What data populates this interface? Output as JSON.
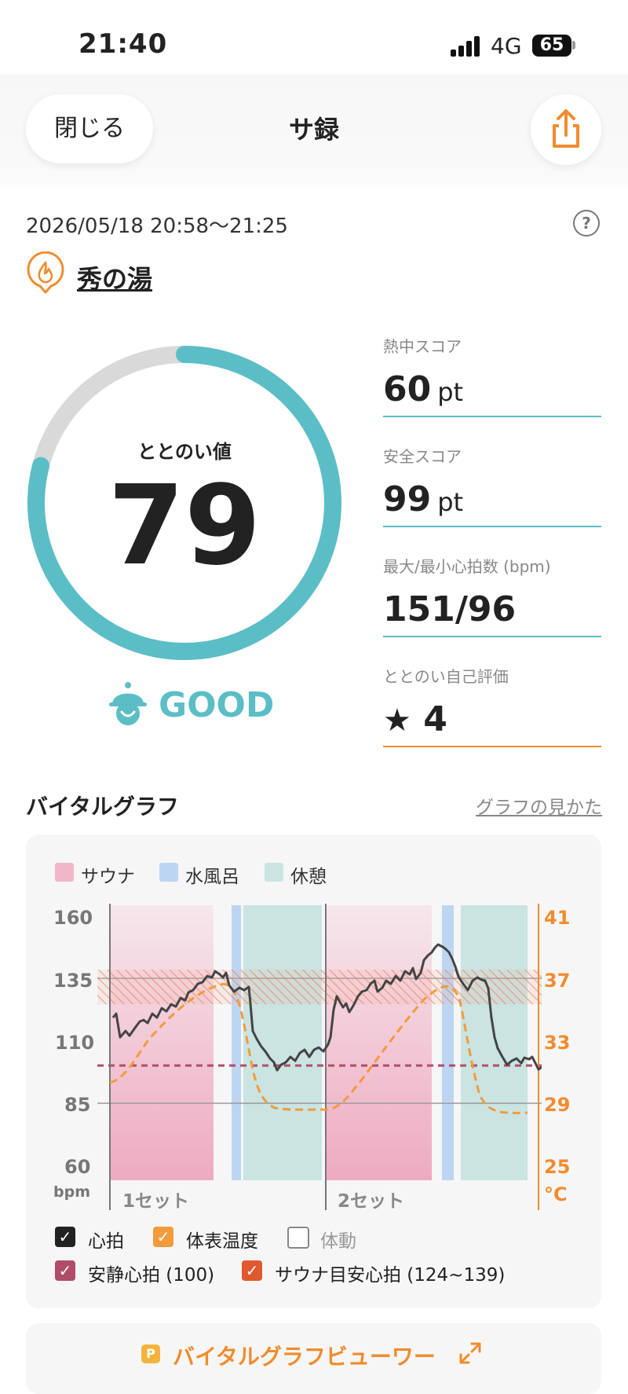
{
  "status_bar": {
    "time": "21:40",
    "network": "4G",
    "battery": "65"
  },
  "header": {
    "close_label": "閉じる",
    "title": "サ録"
  },
  "session": {
    "datetime": "2026/05/18 20:58～21:25",
    "help": "?",
    "facility": "秀の湯"
  },
  "score": {
    "label": "ととのい値",
    "value": "79",
    "fill_percent": 79,
    "rating": "GOOD"
  },
  "stats": [
    {
      "label": "熱中スコア",
      "value": "60",
      "unit": "pt"
    },
    {
      "label": "安全スコア",
      "value": "99",
      "unit": "pt"
    },
    {
      "label": "最大/最小心拍数 (bpm)",
      "value": "151/96",
      "unit": ""
    },
    {
      "label": "ととのい自己評価",
      "value": "4",
      "unit": ""
    }
  ],
  "vital": {
    "section_title": "バイタルグラフ",
    "guide_link": "グラフの見かた",
    "legend": [
      {
        "label": "サウナ",
        "color": "#f0b7c8"
      },
      {
        "label": "水風呂",
        "color": "#bcd6f2"
      },
      {
        "label": "休憩",
        "color": "#c9e4e1"
      }
    ],
    "left_axis": [
      "160",
      "135",
      "110",
      "85",
      "60"
    ],
    "left_unit": "bpm",
    "right_axis": [
      "41",
      "37",
      "33",
      "29",
      "25"
    ],
    "right_unit": "°C",
    "sets": [
      "1セット",
      "2セット"
    ],
    "toggles": [
      {
        "label": "心拍",
        "checked": true,
        "color": "#222222"
      },
      {
        "label": "体表温度",
        "checked": true,
        "color": "#f39a3c"
      },
      {
        "label": "体動",
        "checked": false,
        "color": "#888888"
      },
      {
        "label": "安静心拍 (100)",
        "checked": true,
        "color": "#b04d68"
      },
      {
        "label": "サウナ目安心拍 (124~139)",
        "checked": true,
        "color": "#e0582e"
      }
    ]
  },
  "viewer": {
    "badge": "P",
    "label": "バイタルグラフビューワー"
  }
}
